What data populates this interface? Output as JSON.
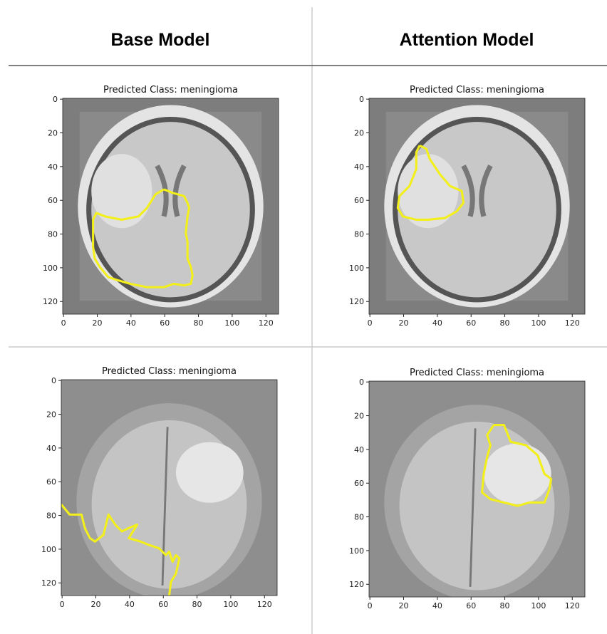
{
  "columns": [
    "Base Model",
    "Attention Model"
  ],
  "panels": [
    {
      "title": "Predicted Class: meningioma",
      "xlim": [
        -0.5,
        127.5
      ],
      "ylim": [
        127.5,
        -0.5
      ],
      "xticks": [
        0,
        20,
        40,
        60,
        80,
        100,
        120
      ],
      "yticks": [
        0,
        20,
        40,
        60,
        80,
        100,
        120
      ]
    },
    {
      "title": "Predicted Class: meningioma",
      "xlim": [
        -0.5,
        127.5
      ],
      "ylim": [
        127.5,
        -0.5
      ],
      "xticks": [
        0,
        20,
        40,
        60,
        80,
        100,
        120
      ],
      "yticks": [
        0,
        20,
        40,
        60,
        80,
        100,
        120
      ]
    },
    {
      "title": "Predicted Class: meningioma",
      "xlim": [
        -0.5,
        127.5
      ],
      "ylim": [
        127.5,
        -0.5
      ],
      "xticks": [
        0,
        20,
        40,
        60,
        80,
        100,
        120
      ],
      "yticks": [
        0,
        20,
        40,
        60,
        80,
        100,
        120
      ]
    },
    {
      "title": "Predicted Class: meningioma",
      "xlim": [
        -0.5,
        127.5
      ],
      "ylim": [
        127.5,
        -0.5
      ],
      "xticks": [
        0,
        20,
        40,
        60,
        80,
        100,
        120
      ],
      "yticks": [
        0,
        20,
        40,
        60,
        80,
        100,
        120
      ]
    }
  ]
}
